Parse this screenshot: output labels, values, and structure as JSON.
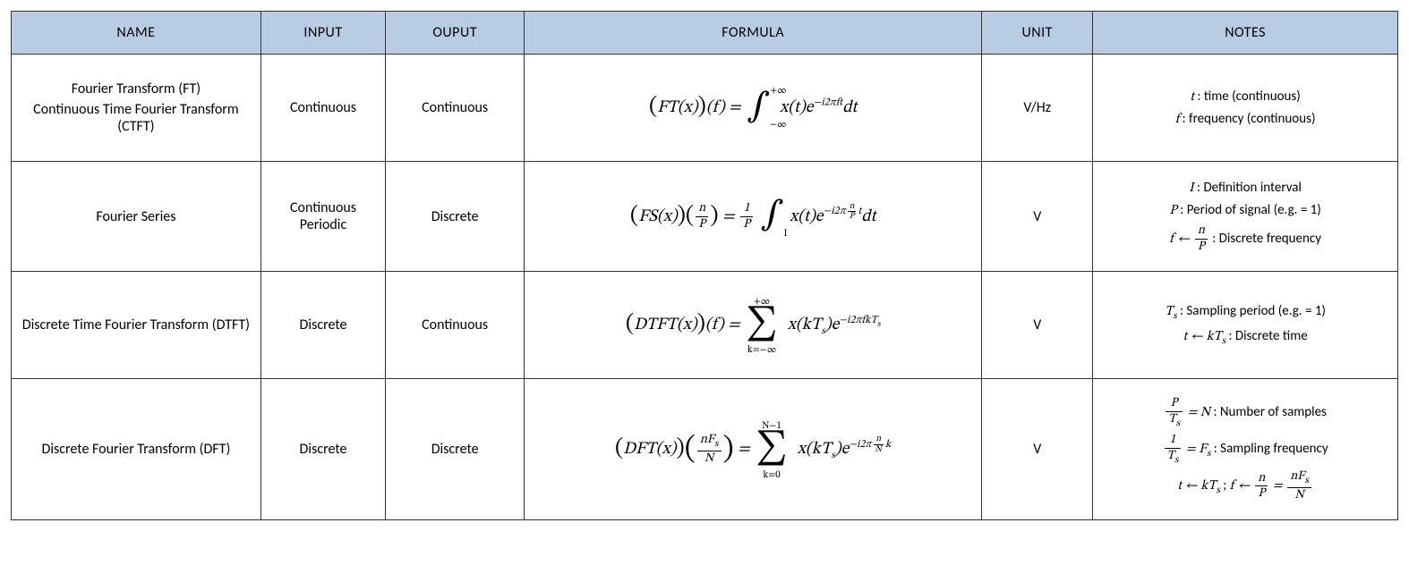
{
  "table": {
    "header_bg": "#b8cce4",
    "border_color": "#333333",
    "columns": [
      {
        "key": "name",
        "label": "NAME",
        "width_pct": 18
      },
      {
        "key": "input",
        "label": "INPUT",
        "width_pct": 9
      },
      {
        "key": "output",
        "label": "OUPUT",
        "width_pct": 10
      },
      {
        "key": "formula",
        "label": "FORMULA",
        "width_pct": 33
      },
      {
        "key": "unit",
        "label": "UNIT",
        "width_pct": 8
      },
      {
        "key": "notes",
        "label": "NOTES",
        "width_pct": 22
      }
    ],
    "rows": [
      {
        "name_lines": [
          "Fourier Transform (FT)",
          "Continuous Time Fourier Transform (CTFT)"
        ],
        "input": "Continuous",
        "output": "Continuous",
        "unit": "V/Hz",
        "formula": {
          "type": "FT",
          "lhs_func": "FT(x)",
          "lhs_arg": "f",
          "integral": {
            "lower": "−∞",
            "upper": "+∞",
            "var": "t"
          },
          "integrand_base": "x(t)e",
          "exponent": "−i2πft",
          "differential": "dt"
        },
        "notes": [
          {
            "var": "t",
            "text": " : time (continuous)"
          },
          {
            "var": "f",
            "text": " : frequency (continuous)"
          }
        ]
      },
      {
        "name_lines": [
          "Fourier Series"
        ],
        "input": "Continuous Periodic",
        "output": "Discrete",
        "unit": "V",
        "formula": {
          "type": "FS",
          "lhs_func": "FS(x)",
          "lhs_arg_frac": {
            "num": "n",
            "den": "P"
          },
          "prefactor_frac": {
            "num": "1",
            "den": "P"
          },
          "integral": {
            "lower": "I",
            "upper": "",
            "var": "t"
          },
          "integrand_base": "x(t)e",
          "exponent_prefix": "−i2π",
          "exponent_frac": {
            "num": "n",
            "den": "P"
          },
          "exponent_suffix": "t",
          "differential": "dt"
        },
        "notes": [
          {
            "var": "I",
            "text": " : Definition interval"
          },
          {
            "var": "P",
            "text": " : Period of signal (e.g. = 1)"
          },
          {
            "var_frac_lhs": "f ← ",
            "frac": {
              "num": "n",
              "den": "P"
            },
            "text": " : Discrete frequency"
          }
        ]
      },
      {
        "name_lines": [
          "Discrete Time Fourier Transform (DTFT)"
        ],
        "input": "Discrete",
        "output": "Continuous",
        "unit": "V",
        "formula": {
          "type": "DTFT",
          "lhs_func": "DTFT(x)",
          "lhs_arg": "f",
          "sum": {
            "lower": "k=−∞",
            "upper": "+∞"
          },
          "term_base": "x(kTₛ)e",
          "exponent": "−i2πfkTₛ",
          "term_base_display": "x(kT",
          "term_sub": "s",
          "term_close": ")e",
          "exponent_display": "−i2πfkT",
          "exponent_sub": "s"
        },
        "notes": [
          {
            "var_with_sub": "T",
            "sub": "s",
            "text": " : Sampling period (e.g. = 1)"
          },
          {
            "arrow_lhs": "t ← kT",
            "sub": "s",
            "text": " : Discrete time"
          }
        ]
      },
      {
        "name_lines": [
          "Discrete Fourier Transform (DFT)"
        ],
        "input": "Discrete",
        "output": "Discrete",
        "unit": "V",
        "formula": {
          "type": "DFT",
          "lhs_func": "DFT(x)",
          "lhs_arg_frac": {
            "num": "nFₛ",
            "den": "N"
          },
          "lhs_arg_frac_display": {
            "num_pre": "nF",
            "num_sub": "s",
            "den": "N"
          },
          "sum": {
            "lower": "k=0",
            "upper": "N−1"
          },
          "term_base_display": "x(kT",
          "term_sub": "s",
          "term_close": ")e",
          "exponent_prefix": "−i2π",
          "exponent_frac": {
            "num": "n",
            "den": "N"
          },
          "exponent_suffix": "k"
        },
        "notes": [
          {
            "frac_lhs": {
              "num": "P",
              "den_pre": "T",
              "den_sub": "s"
            },
            "mid": " = N",
            "text": " : Number of samples"
          },
          {
            "frac_lhs": {
              "num": "1",
              "den_pre": "T",
              "den_sub": "s"
            },
            "mid_pre": " = F",
            "mid_sub": "s",
            "text": " : Sampling frequency"
          },
          {
            "multi": true,
            "p1_lhs": "t ← kT",
            "p1_sub": "s",
            "sep": "    ;    ",
            "p2_lhs": "f ← ",
            "p2_frac1": {
              "num": "n",
              "den": "P"
            },
            "eq": " = ",
            "p2_frac2": {
              "num_pre": "nF",
              "num_sub": "s",
              "den": "N"
            }
          }
        ]
      }
    ]
  }
}
